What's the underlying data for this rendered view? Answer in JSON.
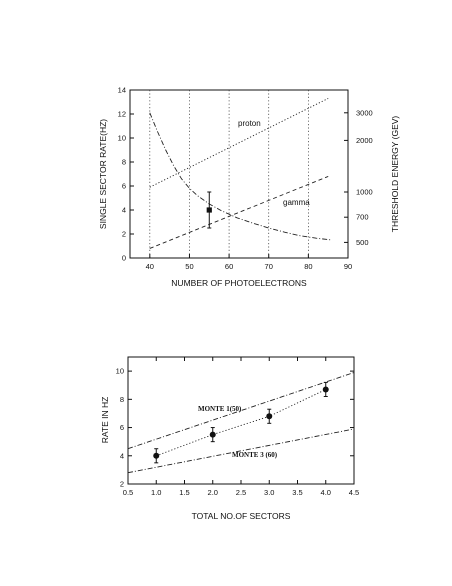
{
  "chart_data": [
    {
      "type": "line",
      "title": "",
      "xlabel": "NUMBER OF PHOTOELECTRONS",
      "ylabel": "SINGLE SECTOR RATE(HZ)",
      "y2label": "THRESHOLD ENERGY (GEV)",
      "xlim": [
        35,
        90
      ],
      "ylim": [
        0,
        14
      ],
      "x_ticks": [
        40,
        50,
        60,
        70,
        80,
        90
      ],
      "y_ticks": [
        0,
        2,
        4,
        6,
        8,
        10,
        12,
        14
      ],
      "y2_ticks": [
        {
          "label": "3000",
          "at_y": 12.1
        },
        {
          "label": "2000",
          "at_y": 9.8
        },
        {
          "label": "1000",
          "at_y": 5.5
        },
        {
          "label": "700",
          "at_y": 3.4
        },
        {
          "label": "500",
          "at_y": 1.3
        }
      ],
      "vertical_gridlines_at": [
        40,
        50,
        60,
        70,
        80
      ],
      "series": [
        {
          "name": "proton",
          "axis": "right",
          "style": "dotted",
          "x": [
            40,
            85
          ],
          "y": [
            5.9,
            13.3
          ]
        },
        {
          "name": "gamma",
          "axis": "right",
          "style": "dashed",
          "x": [
            40,
            85
          ],
          "y": [
            0.8,
            6.8
          ]
        },
        {
          "name": "",
          "axis": "left",
          "style": "dash-dot",
          "x": [
            40,
            42,
            44,
            46,
            48,
            50,
            52,
            55,
            58,
            62,
            66,
            70,
            74,
            78,
            82,
            86
          ],
          "y": [
            12.1,
            10.5,
            9.0,
            7.7,
            6.6,
            5.8,
            5.2,
            4.5,
            3.95,
            3.35,
            2.9,
            2.5,
            2.15,
            1.85,
            1.65,
            1.5
          ]
        }
      ],
      "points": [
        {
          "x": 55,
          "y": 4.0,
          "err_up": 1.5,
          "err_down": 1.5
        }
      ],
      "annotations": [
        "proton",
        "gamma"
      ]
    },
    {
      "type": "line",
      "title": "",
      "xlabel": "TOTAL NO.OF SECTORS",
      "ylabel": "RATE IN HZ",
      "xlim": [
        0.5,
        4.5
      ],
      "ylim": [
        2,
        11
      ],
      "x_ticks": [
        "0.5",
        "1.0",
        "1.5",
        "2.0",
        "2.5",
        "3.0",
        "3.5",
        "4.0",
        "4.5"
      ],
      "y_ticks": [
        2,
        4,
        6,
        8,
        10
      ],
      "series": [
        {
          "name": "MONTE 1(50)",
          "style": "dash-dot",
          "x": [
            0.5,
            4.5
          ],
          "y": [
            4.5,
            9.9
          ]
        },
        {
          "name": "MONTE 3 (60)",
          "style": "dash-dot",
          "x": [
            0.5,
            4.5
          ],
          "y": [
            2.8,
            5.9
          ]
        },
        {
          "name": "",
          "style": "dotted",
          "x": [
            1,
            2,
            3,
            4
          ],
          "y": [
            4.0,
            5.5,
            6.8,
            8.7
          ]
        }
      ],
      "points": [
        {
          "x": 1,
          "y": 4.0,
          "err": 0.5
        },
        {
          "x": 2,
          "y": 5.5,
          "err": 0.5
        },
        {
          "x": 3,
          "y": 6.8,
          "err": 0.5
        },
        {
          "x": 4,
          "y": 8.7,
          "err": 0.5
        }
      ],
      "annotations": [
        "MONTE 1(50)",
        "MONTE 3 (60)"
      ]
    }
  ]
}
